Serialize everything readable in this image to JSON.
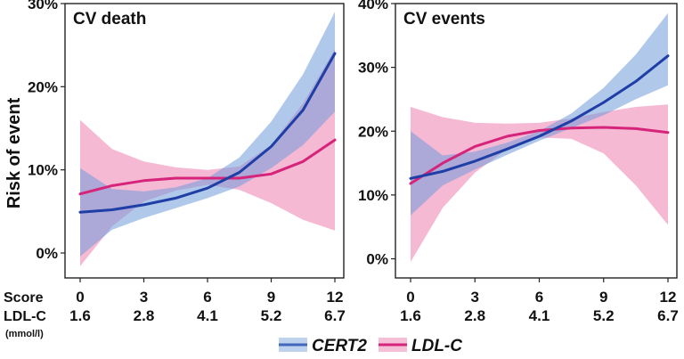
{
  "chart_data": {
    "type": "line",
    "y_axis_title": "Risk of event",
    "x_axis": {
      "row1_label": "Score",
      "row2_label": "LDL-C",
      "row2_unit": "(mmol/l)",
      "score_ticks": [
        0,
        3,
        6,
        9,
        12
      ],
      "ldl_ticks": [
        "1.6",
        "2.8",
        "4.1",
        "5.2",
        "6.7"
      ],
      "xlim": [
        0,
        12
      ]
    },
    "legend": [
      {
        "name": "CERT2",
        "color": "#1f3ea6",
        "band_color": "#6f9ad8"
      },
      {
        "name": "LDL-C",
        "color": "#d6247a",
        "band_color": "#ef8ab8"
      }
    ],
    "panels": [
      {
        "title": "CV death",
        "ylim": [
          -0.03,
          0.3
        ],
        "yticks": [
          0,
          0.1,
          0.2,
          0.3
        ],
        "ytick_labels": [
          "0%",
          "10%",
          "20%",
          "30%"
        ],
        "x": [
          0,
          1.5,
          3,
          4.5,
          6,
          7.5,
          9,
          10.5,
          12
        ],
        "series": [
          {
            "name": "CERT2",
            "values": [
              0.049,
              0.052,
              0.058,
              0.066,
              0.078,
              0.097,
              0.128,
              0.172,
              0.24
            ],
            "lower": [
              -0.004,
              0.028,
              0.042,
              0.054,
              0.066,
              0.08,
              0.102,
              0.13,
              0.17
            ],
            "upper": [
              0.102,
              0.077,
              0.074,
              0.079,
              0.09,
              0.115,
              0.158,
              0.215,
              0.29
            ]
          },
          {
            "name": "LDL-C",
            "values": [
              0.071,
              0.081,
              0.087,
              0.09,
              0.09,
              0.09,
              0.095,
              0.11,
              0.136
            ],
            "lower": [
              -0.016,
              0.032,
              0.062,
              0.075,
              0.082,
              0.076,
              0.06,
              0.04,
              0.027
            ],
            "upper": [
              0.16,
              0.125,
              0.11,
              0.103,
              0.1,
              0.104,
              0.13,
              0.18,
              0.245
            ]
          }
        ]
      },
      {
        "title": "CV events",
        "ylim": [
          -0.03,
          0.4
        ],
        "yticks": [
          0,
          0.1,
          0.2,
          0.3,
          0.4
        ],
        "ytick_labels": [
          "0%",
          "10%",
          "20%",
          "30%",
          "40%"
        ],
        "x": [
          0,
          1.5,
          3,
          4.5,
          6,
          7.5,
          9,
          10.5,
          12
        ],
        "series": [
          {
            "name": "CERT2",
            "values": [
              0.126,
              0.137,
              0.153,
              0.172,
              0.192,
              0.216,
              0.245,
              0.278,
              0.318
            ],
            "lower": [
              0.068,
              0.115,
              0.14,
              0.163,
              0.185,
              0.205,
              0.225,
              0.25,
              0.272
            ],
            "upper": [
              0.2,
              0.162,
              0.168,
              0.182,
              0.2,
              0.228,
              0.268,
              0.32,
              0.385
            ]
          },
          {
            "name": "LDL-C",
            "values": [
              0.118,
              0.15,
              0.176,
              0.192,
              0.201,
              0.205,
              0.206,
              0.204,
              0.198
            ],
            "lower": [
              -0.005,
              0.08,
              0.135,
              0.172,
              0.19,
              0.188,
              0.165,
              0.115,
              0.053
            ],
            "upper": [
              0.238,
              0.222,
              0.213,
              0.212,
              0.213,
              0.22,
              0.23,
              0.238,
              0.242
            ]
          }
        ]
      }
    ]
  }
}
